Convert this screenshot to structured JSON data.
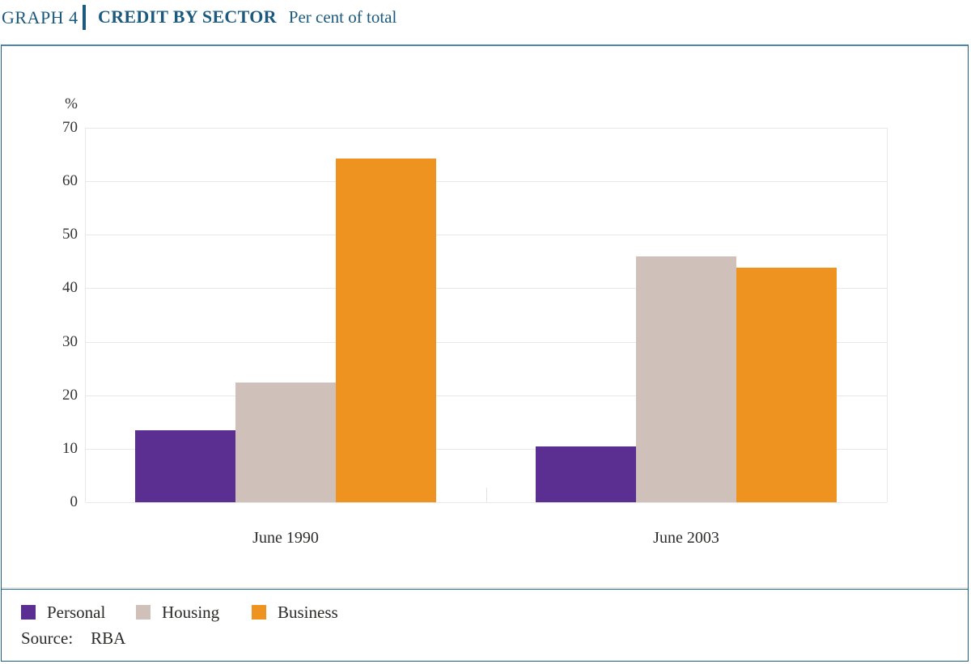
{
  "header": {
    "graph_label": "GRAPH 4",
    "title": "CREDIT BY SECTOR",
    "subtitle": "Per cent of total"
  },
  "source": {
    "label": "Source:",
    "value": "RBA"
  },
  "chart_data": {
    "type": "bar",
    "title": "CREDIT BY SECTOR",
    "subtitle": "Per cent of total",
    "unit_label": "%",
    "categories": [
      "June 1990",
      "June 2003"
    ],
    "series": [
      {
        "name": "Personal",
        "color": "#5b2f92",
        "values": [
          13.5,
          10.4
        ]
      },
      {
        "name": "Housing",
        "color": "#cfc1b9",
        "values": [
          22.4,
          45.9
        ]
      },
      {
        "name": "Business",
        "color": "#ee9320",
        "values": [
          64.3,
          43.8
        ]
      }
    ],
    "ylim": [
      0,
      70
    ],
    "yticks": [
      0,
      10,
      20,
      30,
      40,
      50,
      60,
      70
    ],
    "grid": "horizontal",
    "legend_position": "bottom",
    "colors": {
      "accent_blue": "#1b5a7e",
      "gridline": "#e9e8e8"
    }
  }
}
